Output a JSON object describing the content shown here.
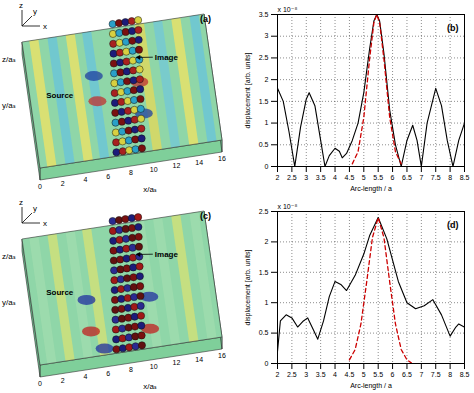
{
  "chart_data": [
    {
      "type": "field_map",
      "title": "(a)",
      "xlabel": "x/aₛ",
      "ylabel": "y/aₛ",
      "zlabel": "z/aₛ",
      "axis_glyph": [
        "x",
        "y",
        "z"
      ],
      "xlim": [
        0,
        16
      ],
      "xticks": [
        0,
        2,
        4,
        6,
        8,
        10,
        12,
        14,
        16
      ],
      "annotations": [
        "Source",
        "Image"
      ]
    },
    {
      "type": "line",
      "title": "(b)",
      "xlabel": "Arc-length / a",
      "ylabel": "displacement [arb. units]",
      "annotations": [
        "x 10⁻⁸"
      ],
      "grid": true,
      "xlim": [
        2,
        8.5
      ],
      "xticks": [
        2,
        2.5,
        3,
        3.5,
        4,
        4.5,
        5,
        5.5,
        6,
        6.5,
        7,
        7.5,
        8,
        8.5
      ],
      "ylim": [
        0,
        3.5
      ],
      "yticks": [
        0,
        0.5,
        1,
        1.5,
        2,
        2.5,
        3,
        3.5
      ],
      "series": [
        {
          "color": "#000000",
          "line_style": "solid",
          "x": [
            2.0,
            2.2,
            2.4,
            2.6,
            2.8,
            3.0,
            3.1,
            3.3,
            3.5,
            3.65,
            3.8,
            4.0,
            4.15,
            4.25,
            4.4,
            4.6,
            4.8,
            5.0,
            5.2,
            5.35,
            5.45,
            5.55,
            5.7,
            5.9,
            6.1,
            6.3,
            6.5,
            6.7,
            6.85,
            7.0,
            7.2,
            7.5,
            7.7,
            7.9,
            8.1,
            8.3,
            8.5
          ],
          "values": [
            1.8,
            1.5,
            0.8,
            0.0,
            0.9,
            1.55,
            1.7,
            1.4,
            0.6,
            0.0,
            0.25,
            0.42,
            0.35,
            0.2,
            0.3,
            0.6,
            1.0,
            1.7,
            2.7,
            3.35,
            3.5,
            3.35,
            2.6,
            1.3,
            0.5,
            0.0,
            0.6,
            0.95,
            0.6,
            0.0,
            1.0,
            1.8,
            1.4,
            0.6,
            0.0,
            0.6,
            1.0
          ]
        },
        {
          "color": "#cc0000",
          "line_style": "dashed",
          "x": [
            4.6,
            4.8,
            5.0,
            5.2,
            5.35,
            5.45,
            5.55,
            5.7,
            5.9,
            6.1,
            6.3
          ],
          "values": [
            0.06,
            0.34,
            1.13,
            2.47,
            3.31,
            3.5,
            3.31,
            2.47,
            1.13,
            0.34,
            0.06
          ]
        }
      ]
    },
    {
      "type": "field_map",
      "title": "(c)",
      "xlabel": "x/aₛ",
      "ylabel": "y/aₛ",
      "zlabel": "z/aₛ",
      "axis_glyph": [
        "x",
        "y",
        "z"
      ],
      "xlim": [
        0,
        16
      ],
      "xticks": [
        0,
        2,
        4,
        6,
        8,
        10,
        12,
        14,
        16
      ],
      "annotations": [
        "Source",
        "Image"
      ]
    },
    {
      "type": "line",
      "title": "(d)",
      "xlabel": "Arc-length / a",
      "ylabel": "displacement [arb. units]",
      "annotations": [
        "x 10⁻⁸"
      ],
      "grid": true,
      "xlim": [
        2,
        8.5
      ],
      "xticks": [
        2,
        2.5,
        3,
        3.5,
        4,
        4.5,
        5,
        5.5,
        6,
        6.5,
        7,
        7.5,
        8,
        8.5
      ],
      "ylim": [
        0,
        2.5
      ],
      "yticks": [
        0,
        0.5,
        1,
        1.5,
        2,
        2.5
      ],
      "series": [
        {
          "color": "#000000",
          "line_style": "solid",
          "x": [
            2.0,
            2.1,
            2.3,
            2.5,
            2.7,
            2.9,
            3.05,
            3.25,
            3.4,
            3.6,
            3.8,
            4.0,
            4.2,
            4.4,
            4.7,
            5.0,
            5.2,
            5.5,
            5.8,
            6.0,
            6.2,
            6.5,
            6.8,
            7.1,
            7.4,
            7.7,
            8.0,
            8.2,
            8.3,
            8.5
          ],
          "values": [
            0.2,
            0.7,
            0.8,
            0.75,
            0.6,
            0.7,
            0.75,
            0.55,
            0.4,
            0.7,
            1.1,
            1.35,
            1.3,
            1.2,
            1.45,
            1.8,
            2.1,
            2.4,
            2.05,
            1.7,
            1.35,
            1.0,
            0.9,
            0.95,
            1.05,
            0.8,
            0.45,
            0.6,
            0.65,
            0.6
          ]
        },
        {
          "color": "#cc0000",
          "line_style": "dashed",
          "x": [
            4.5,
            4.7,
            4.9,
            5.1,
            5.3,
            5.5,
            5.7,
            5.9,
            6.1,
            6.3,
            6.5,
            6.65
          ],
          "values": [
            0.06,
            0.23,
            0.65,
            1.34,
            2.07,
            2.4,
            2.07,
            1.34,
            0.65,
            0.23,
            0.06,
            0.01
          ]
        }
      ]
    }
  ]
}
